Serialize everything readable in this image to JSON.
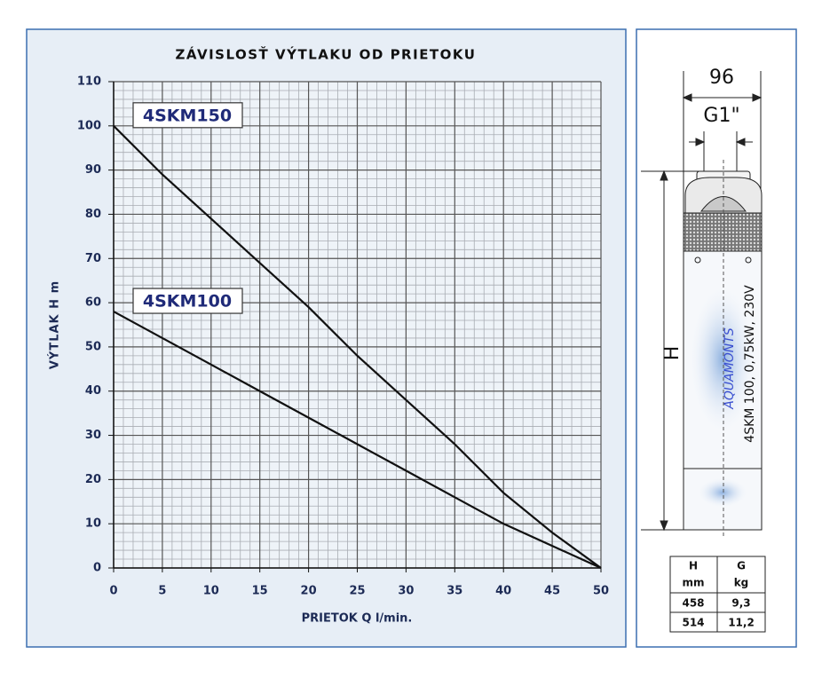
{
  "chart_data": {
    "type": "line",
    "title": "ZÁVISLOSŤ VÝTLAKU OD PRIETOKU",
    "x_label": "PRIETOK Q l/min.",
    "y_label": "VÝTLAK H m",
    "x": [
      0,
      5,
      10,
      15,
      20,
      25,
      30,
      35,
      40,
      45,
      50
    ],
    "series": [
      {
        "name": "4SKM150",
        "color": "#111111",
        "values": [
          100,
          89,
          79,
          69,
          59,
          48,
          38,
          28,
          17,
          8,
          0
        ]
      },
      {
        "name": "4SKM100",
        "color": "#111111",
        "values": [
          58,
          52,
          46,
          40,
          34,
          28,
          22,
          16,
          10,
          5,
          0
        ]
      }
    ],
    "xlim": [
      0,
      50
    ],
    "ylim": [
      0,
      110
    ],
    "xticks": [
      0,
      5,
      10,
      15,
      20,
      25,
      30,
      35,
      40,
      45,
      50
    ],
    "yticks": [
      0,
      10,
      20,
      30,
      40,
      50,
      60,
      70,
      80,
      90,
      100,
      110
    ],
    "grid": true
  },
  "diagram": {
    "width_label": "96",
    "thread_label": "G1\"",
    "height_label": "H",
    "brand": "AQUAMONTS",
    "model": "4SKM 100, 0,75kW, 230V"
  },
  "table": {
    "header": [
      "H",
      "G"
    ],
    "units": [
      "mm",
      "kg"
    ],
    "rows": [
      [
        "458",
        "9,3"
      ],
      [
        "514",
        "11,2"
      ]
    ]
  }
}
